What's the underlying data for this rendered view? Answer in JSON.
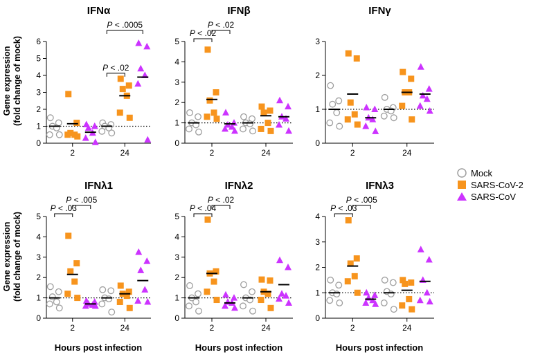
{
  "figure": {
    "ylabel_line1": "Gene expression",
    "ylabel_line2": "(fold change of mock)",
    "xlabel": "Hours post infection",
    "legend": [
      {
        "label": "Mock",
        "marker": "circle",
        "color": "#9e9e9e"
      },
      {
        "label": "SARS-CoV-2",
        "marker": "square",
        "color": "#f7941d"
      },
      {
        "label": "SARS-CoV",
        "marker": "triangle",
        "color": "#cc33ff"
      }
    ]
  },
  "chart_data": [
    {
      "type": "scatter",
      "title": "IFNα",
      "xlabel": "Hours post infection",
      "ylabel": "Gene expression (fold change of mock)",
      "categories": [
        "2",
        "24"
      ],
      "ylim": [
        0,
        6
      ],
      "yticks": [
        0,
        1,
        2,
        3,
        4,
        5,
        6
      ],
      "reference_line": 1,
      "series": [
        {
          "name": "Mock",
          "values": [
            [
              1.5,
              1.2,
              1.0,
              0.9,
              0.5,
              0.5
            ],
            [
              1.2,
              1.1,
              1.0,
              0.9,
              0.7,
              0.6
            ]
          ],
          "means": [
            1.0,
            1.0
          ]
        },
        {
          "name": "SARS-CoV-2",
          "values": [
            [
              2.9,
              1.2,
              0.6,
              0.5,
              0.5,
              0.4
            ],
            [
              3.8,
              3.4,
              3.2,
              2.8,
              1.8,
              1.5
            ]
          ],
          "means": [
            1.15,
            2.8
          ]
        },
        {
          "name": "SARS-CoV",
          "values": [
            [
              1.1,
              1.0,
              0.9,
              0.6,
              0.3,
              0.05
            ],
            [
              5.9,
              5.7,
              4.4,
              4.0,
              3.5,
              0.2
            ]
          ],
          "means": [
            0.65,
            3.9
          ]
        }
      ],
      "significance": [
        {
          "text": "P < .02",
          "group": 1,
          "from": 0,
          "to": 1
        },
        {
          "text": "P < .0005",
          "group": 1,
          "from": 0,
          "to": 2
        }
      ]
    },
    {
      "type": "scatter",
      "title": "IFNβ",
      "xlabel": "Hours post infection",
      "ylabel": "Gene expression (fold change of mock)",
      "categories": [
        "2",
        "24"
      ],
      "ylim": [
        0,
        5
      ],
      "yticks": [
        0,
        1,
        2,
        3,
        4,
        5
      ],
      "reference_line": 1,
      "series": [
        {
          "name": "Mock",
          "values": [
            [
              1.5,
              1.3,
              1.0,
              0.9,
              0.7,
              0.55
            ],
            [
              1.3,
              1.2,
              1.0,
              0.95,
              0.7,
              0.6
            ]
          ],
          "means": [
            1.0,
            1.0
          ]
        },
        {
          "name": "SARS-CoV-2",
          "values": [
            [
              4.6,
              2.5,
              2.1,
              1.5,
              1.3,
              1.2
            ],
            [
              1.8,
              1.6,
              1.5,
              1.0,
              0.7,
              0.6
            ]
          ],
          "means": [
            2.15,
            1.35
          ]
        },
        {
          "name": "SARS-CoV",
          "values": [
            [
              1.5,
              1.0,
              0.9,
              0.8,
              0.7,
              0.6
            ],
            [
              2.1,
              1.8,
              1.3,
              1.2,
              0.9,
              0.6
            ]
          ],
          "means": [
            0.95,
            1.3
          ]
        }
      ],
      "significance": [
        {
          "text": "P < .02",
          "group": 0,
          "from": 0,
          "to": 1
        },
        {
          "text": "P < .02",
          "group": 0,
          "from": 1,
          "to": 2
        }
      ]
    },
    {
      "type": "scatter",
      "title": "IFNγ",
      "xlabel": "Hours post infection",
      "ylabel": "Gene expression (fold change of mock)",
      "categories": [
        "2",
        "24"
      ],
      "ylim": [
        0,
        3
      ],
      "yticks": [
        0,
        1,
        2,
        3
      ],
      "reference_line": 1,
      "series": [
        {
          "name": "Mock",
          "values": [
            [
              1.7,
              1.25,
              1.15,
              0.9,
              0.6,
              0.5
            ],
            [
              1.35,
              1.05,
              1.0,
              0.95,
              0.8,
              0.75
            ]
          ],
          "means": [
            1.0,
            1.0
          ]
        },
        {
          "name": "SARS-CoV-2",
          "values": [
            [
              2.65,
              2.5,
              1.2,
              0.85,
              0.7,
              0.55
            ],
            [
              2.1,
              1.9,
              1.5,
              1.5,
              1.1,
              0.7
            ]
          ],
          "means": [
            1.45,
            1.5
          ]
        },
        {
          "name": "SARS-CoV",
          "values": [
            [
              1.05,
              1.0,
              0.75,
              0.7,
              0.5,
              0.35
            ],
            [
              2.25,
              1.6,
              1.4,
              1.3,
              1.1,
              0.95
            ]
          ],
          "means": [
            0.75,
            1.45
          ]
        }
      ],
      "significance": []
    },
    {
      "type": "scatter",
      "title": "IFNλ1",
      "xlabel": "Hours post infection",
      "ylabel": "Gene expression (fold change of mock)",
      "categories": [
        "2",
        "24"
      ],
      "ylim": [
        0,
        5
      ],
      "yticks": [
        0,
        1,
        2,
        3,
        4,
        5
      ],
      "reference_line": 1,
      "series": [
        {
          "name": "Mock",
          "values": [
            [
              1.55,
              1.3,
              1.05,
              0.8,
              0.7,
              0.5
            ],
            [
              1.4,
              1.35,
              1.0,
              0.95,
              0.7,
              0.3
            ]
          ],
          "means": [
            1.0,
            1.0
          ]
        },
        {
          "name": "SARS-CoV-2",
          "values": [
            [
              4.05,
              2.7,
              2.3,
              1.8,
              1.2,
              1.0
            ],
            [
              1.6,
              1.3,
              1.2,
              1.1,
              0.8,
              0.5
            ]
          ],
          "means": [
            2.15,
            1.2
          ]
        },
        {
          "name": "SARS-CoV",
          "values": [
            [
              0.85,
              0.8,
              0.7,
              0.65,
              0.6,
              0.6
            ],
            [
              3.25,
              2.8,
              2.35,
              1.4,
              0.85,
              0.8
            ]
          ],
          "means": [
            0.7,
            1.85
          ]
        }
      ],
      "significance": [
        {
          "text": "P < .03",
          "group": 0,
          "from": 0,
          "to": 1
        },
        {
          "text": "P < .005",
          "group": 0,
          "from": 1,
          "to": 2
        }
      ]
    },
    {
      "type": "scatter",
      "title": "IFNλ2",
      "xlabel": "Hours post infection",
      "ylabel": "Gene expression (fold change of mock)",
      "categories": [
        "2",
        "24"
      ],
      "ylim": [
        0,
        5
      ],
      "yticks": [
        0,
        1,
        2,
        3,
        4,
        5
      ],
      "reference_line": 1,
      "series": [
        {
          "name": "Mock",
          "values": [
            [
              1.6,
              1.2,
              1.0,
              0.8,
              0.6,
              0.35
            ],
            [
              1.65,
              1.3,
              1.0,
              0.9,
              0.6,
              0.35
            ]
          ],
          "means": [
            1.0,
            1.0
          ]
        },
        {
          "name": "SARS-CoV-2",
          "values": [
            [
              4.85,
              2.3,
              2.2,
              1.8,
              1.3,
              0.9
            ],
            [
              1.9,
              1.85,
              1.3,
              1.2,
              0.9,
              0.5
            ]
          ],
          "means": [
            2.2,
            1.3
          ]
        },
        {
          "name": "SARS-CoV",
          "values": [
            [
              1.15,
              1.0,
              0.8,
              0.75,
              0.6,
              0.5
            ],
            [
              2.85,
              2.5,
              1.2,
              1.1,
              0.95,
              0.75
            ]
          ],
          "means": [
            0.75,
            1.65
          ]
        }
      ],
      "significance": [
        {
          "text": "P < .04",
          "group": 0,
          "from": 0,
          "to": 1
        },
        {
          "text": "P < .02",
          "group": 0,
          "from": 1,
          "to": 2
        }
      ]
    },
    {
      "type": "scatter",
      "title": "IFNλ3",
      "xlabel": "Hours post infection",
      "ylabel": "Gene expression (fold change of mock)",
      "categories": [
        "2",
        "24"
      ],
      "ylim": [
        0,
        4
      ],
      "yticks": [
        0,
        1,
        2,
        3,
        4
      ],
      "reference_line": 1,
      "series": [
        {
          "name": "Mock",
          "values": [
            [
              1.5,
              1.3,
              1.0,
              0.95,
              0.7,
              0.6
            ],
            [
              1.5,
              1.4,
              1.05,
              0.95,
              0.6,
              0.35
            ]
          ],
          "means": [
            1.0,
            1.0
          ]
        },
        {
          "name": "SARS-CoV-2",
          "values": [
            [
              3.85,
              2.35,
              2.15,
              1.65,
              1.45,
              1.0
            ],
            [
              1.5,
              1.4,
              1.35,
              0.75,
              0.5,
              0.35
            ]
          ],
          "means": [
            2.05,
            1.1
          ]
        },
        {
          "name": "SARS-CoV",
          "values": [
            [
              1.0,
              0.9,
              0.8,
              0.7,
              0.6,
              0.55
            ],
            [
              2.7,
              2.3,
              1.5,
              1.0,
              0.7,
              0.65
            ]
          ],
          "means": [
            0.75,
            1.45
          ]
        }
      ],
      "significance": [
        {
          "text": "P < .03",
          "group": 0,
          "from": 0,
          "to": 1
        },
        {
          "text": "P < .005",
          "group": 0,
          "from": 1,
          "to": 2
        }
      ]
    }
  ]
}
